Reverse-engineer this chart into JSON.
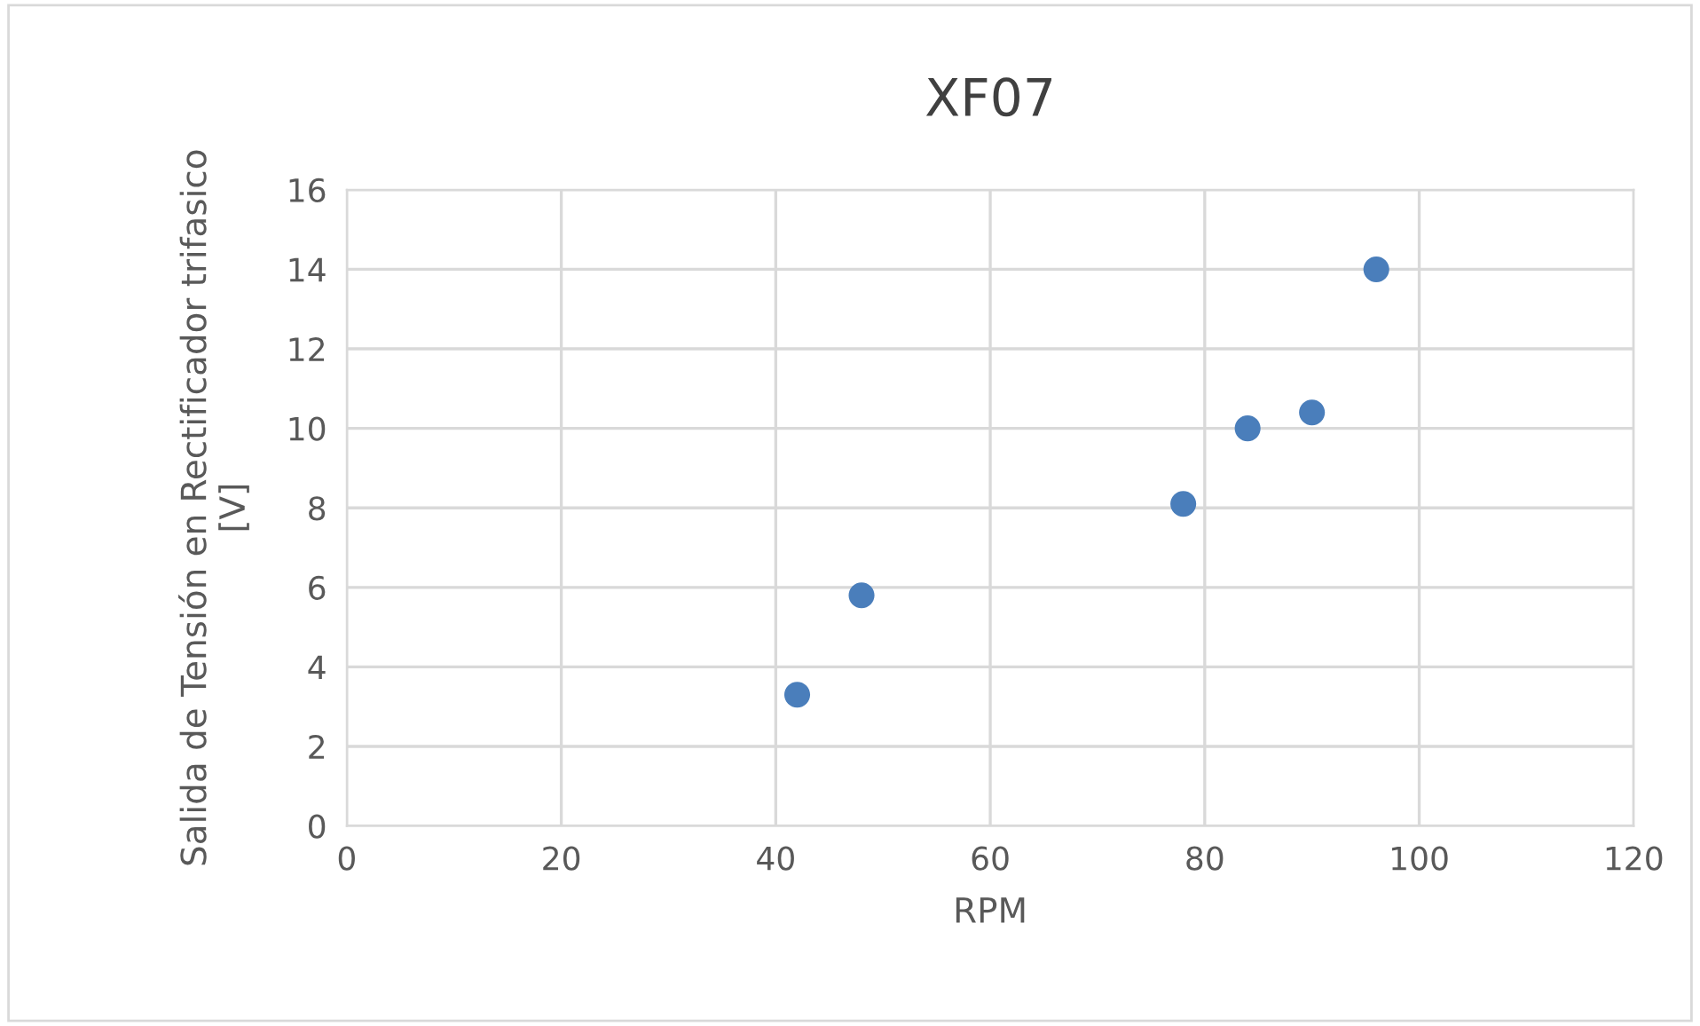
{
  "chart_data": {
    "type": "scatter",
    "title": "XF07",
    "xlabel": "RPM",
    "ylabel": "Salida de Tensión en Rectificador trifasico [V]",
    "x": [
      42,
      48,
      78,
      84,
      90,
      96
    ],
    "series": [
      {
        "color": "#4a7ebb",
        "values": [
          3.3,
          5.8,
          8.1,
          10,
          10.4,
          14
        ]
      }
    ],
    "xlim": [
      0,
      120
    ],
    "xticks": [
      0,
      20,
      40,
      60,
      80,
      100,
      120
    ],
    "ylim": [
      0,
      16
    ],
    "yticks": [
      0,
      2,
      4,
      6,
      8,
      10,
      12,
      14,
      16
    ],
    "grid": true,
    "marker": "circle"
  }
}
